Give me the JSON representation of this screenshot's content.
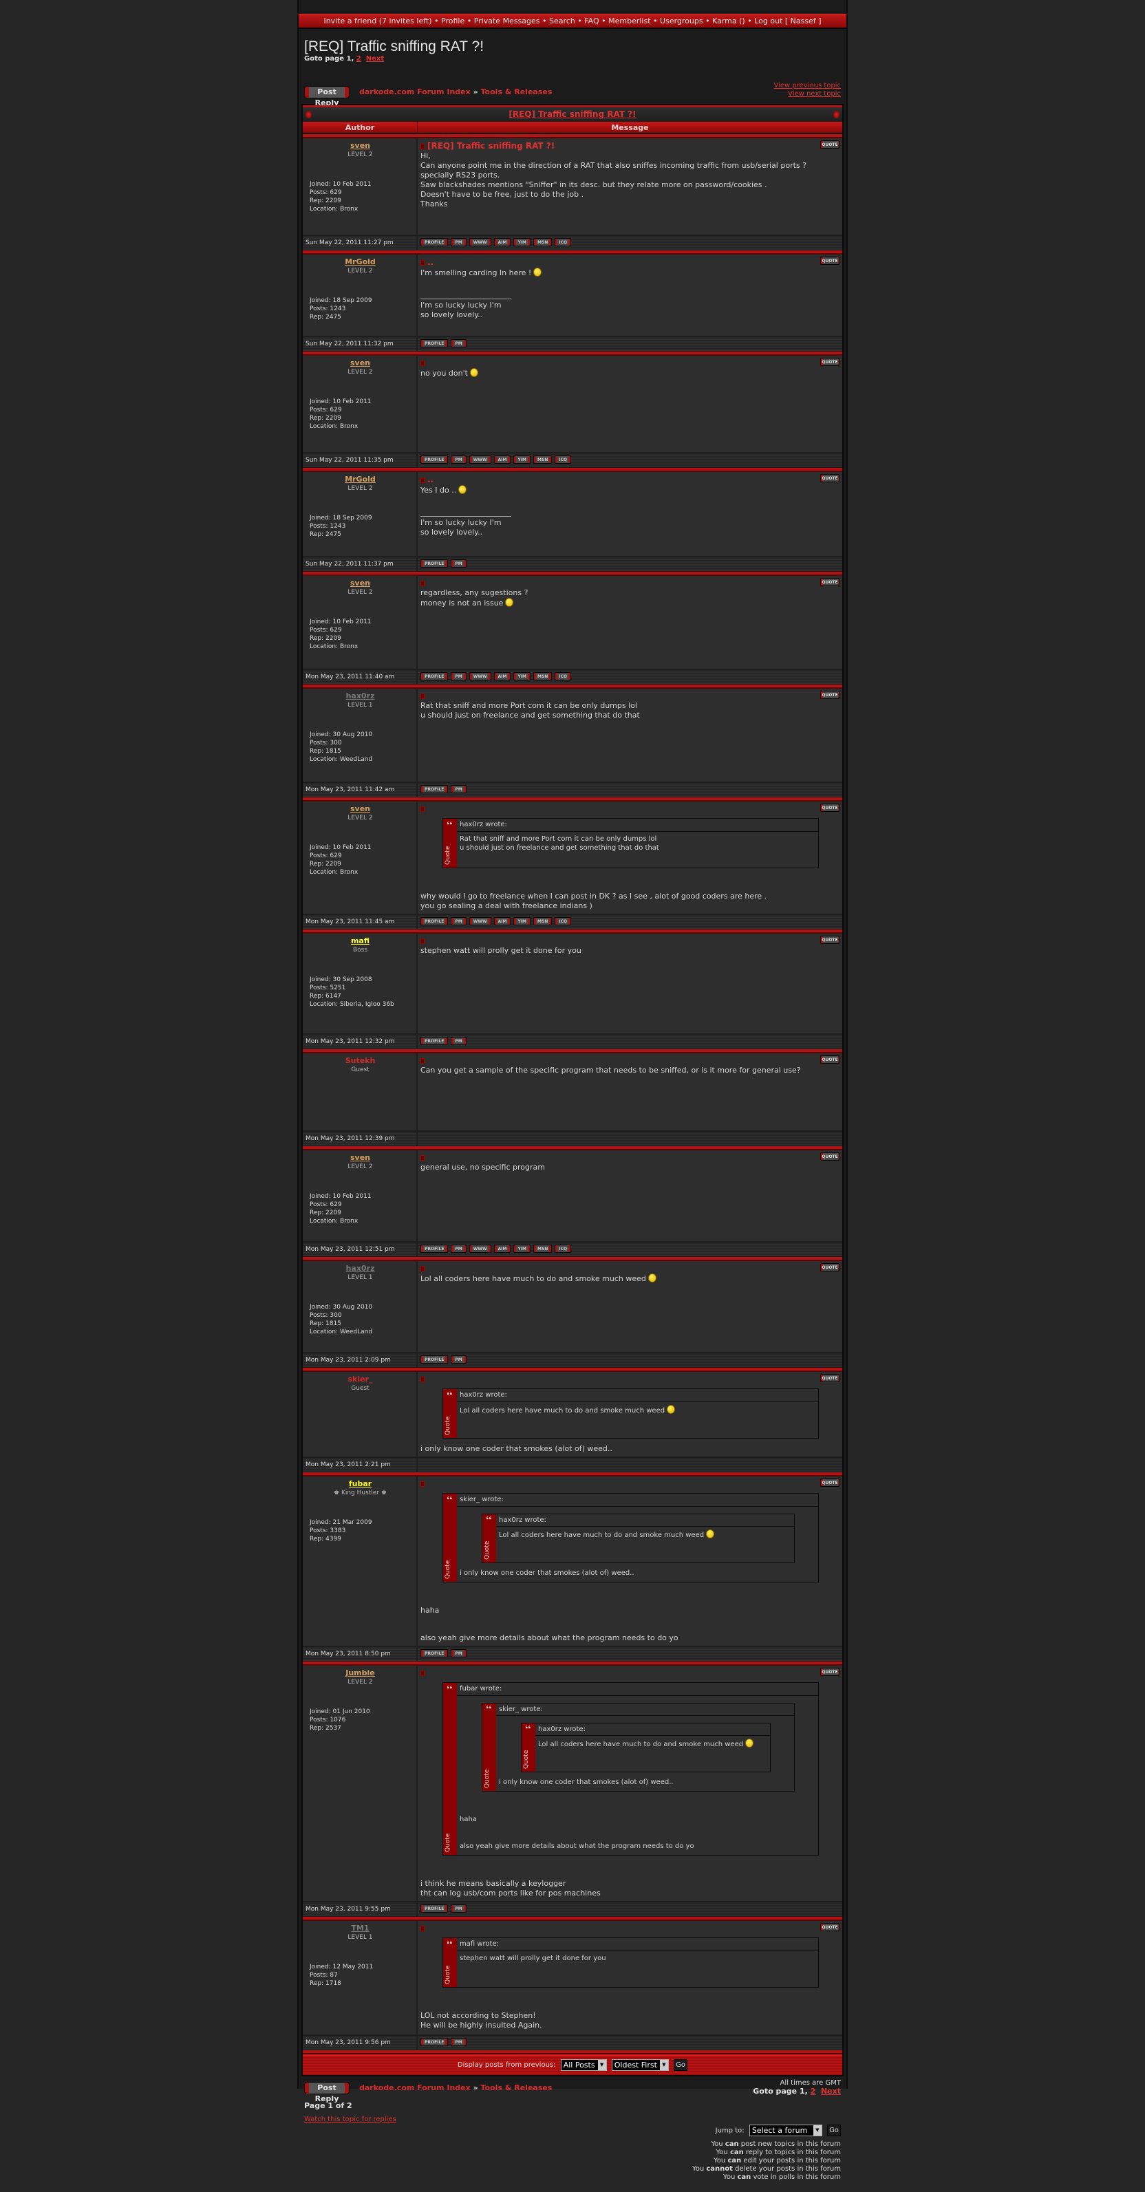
{
  "nav": {
    "items": [
      "Invite a friend (7 invites left)",
      "Profile",
      "Private Messages",
      "Search",
      "FAQ",
      "Memberlist",
      "Usergroups",
      "Karma ()",
      "Log out [ Nassef ]"
    ],
    "separator": "•"
  },
  "topic": {
    "title": "[REQ] Traffic sniffing RAT ?!"
  },
  "pagination": {
    "prefix": "Goto page",
    "current": "1,",
    "page2": "2",
    "next": "Next",
    "page_of": "Page 1 of 2"
  },
  "toolbar": {
    "post_reply": "Post Reply",
    "forum_index": "darkode.com Forum Index",
    "crumb_sep": "»",
    "forum": "Tools & Releases",
    "prev_topic": "View previous topic",
    "next_topic": "View next topic"
  },
  "table": {
    "author_header": "Author",
    "message_header": "Message",
    "quote_label": "QUOTE",
    "quote_side": "Quote"
  },
  "colors": {
    "accent": "#b31515",
    "name_tan": "#d4a062",
    "name_gray": "#7a7a7a",
    "name_yellow": "#ffff33",
    "name_red": "#d42a2a"
  },
  "posts": [
    {
      "author": "sven",
      "color": "#d4a062",
      "rank": "LEVEL 2",
      "info": [
        "Joined: 10 Feb 2011",
        "Posts: 629",
        "Rep: 2209",
        "Location: Bronx"
      ],
      "subject": "[REQ] Traffic sniffing RAT ?!",
      "date": "Sun May 22, 2011 11:27 pm",
      "buttons": [
        "PROFILE",
        "PM",
        "WWW",
        "AIM",
        "YIM",
        "MSN",
        "ICQ"
      ],
      "body": [
        {
          "type": "text",
          "lines": [
            {
              "text": "Hi,"
            },
            {
              "text": "Can anyone point me in the direction of a RAT that also sniffes incoming traffic from usb/serial ports ? specially RS23 ports."
            },
            {
              "text": "Saw blackshades mentions \"Sniffer\" in its desc. but they relate more on password/cookies ."
            },
            {
              "text": "Doesn't have to be free, just to do the job ."
            },
            {
              "text": "Thanks"
            }
          ]
        }
      ]
    },
    {
      "author": "MrGold",
      "color": "#d4a062",
      "rank": "LEVEL 2",
      "info": [
        "Joined: 18 Sep 2009",
        "Posts: 1243",
        "Rep: 2475"
      ],
      "subject": "..",
      "date": "Sun May 22, 2011 11:32 pm",
      "buttons": [
        "PROFILE",
        "PM"
      ],
      "body": [
        {
          "type": "text",
          "lines": [
            {
              "text": "I'm smelling carding In here !",
              "smiley": "rolleyes-smiley"
            }
          ]
        },
        {
          "type": "sig",
          "text": "I'm so lucky lucky I'm so lovely lovely.."
        }
      ]
    },
    {
      "author": "sven",
      "color": "#d4a062",
      "rank": "LEVEL 2",
      "info": [
        "Joined: 10 Feb 2011",
        "Posts: 629",
        "Rep: 2209",
        "Location: Bronx"
      ],
      "subject": "",
      "date": "Sun May 22, 2011 11:35 pm",
      "buttons": [
        "PROFILE",
        "PM",
        "WWW",
        "AIM",
        "YIM",
        "MSN",
        "ICQ"
      ],
      "body": [
        {
          "type": "text",
          "lines": [
            {
              "text": "no you don't",
              "smiley": "shocked-smiley"
            }
          ]
        }
      ]
    },
    {
      "author": "MrGold",
      "color": "#d4a062",
      "rank": "LEVEL 2",
      "info": [
        "Joined: 18 Sep 2009",
        "Posts: 1243",
        "Rep: 2475"
      ],
      "subject": "..",
      "date": "Sun May 22, 2011 11:37 pm",
      "buttons": [
        "PROFILE",
        "PM"
      ],
      "body": [
        {
          "type": "text",
          "lines": [
            {
              "text": "Yes I do ..",
              "smiley": "rolleyes-smiley"
            }
          ]
        },
        {
          "type": "sig",
          "text": "I'm so lucky lucky I'm so lovely lovely.."
        }
      ]
    },
    {
      "author": "sven",
      "color": "#d4a062",
      "rank": "LEVEL 2",
      "info": [
        "Joined: 10 Feb 2011",
        "Posts: 629",
        "Rep: 2209",
        "Location: Bronx"
      ],
      "subject": "",
      "date": "Mon May 23, 2011 11:40 am",
      "buttons": [
        "PROFILE",
        "PM",
        "WWW",
        "AIM",
        "YIM",
        "MSN",
        "ICQ"
      ],
      "body": [
        {
          "type": "text",
          "lines": [
            {
              "text": "regardless, any sugestions ?"
            },
            {
              "text": "money is not an issue",
              "smiley": "idea-smiley"
            }
          ]
        }
      ]
    },
    {
      "author": "hax0rz",
      "color": "#7a7a7a",
      "rank": "LEVEL 1",
      "info": [
        "Joined: 30 Aug 2010",
        "Posts: 300",
        "Rep: 1815",
        "Location: WeedLand"
      ],
      "subject": "",
      "date": "Mon May 23, 2011 11:42 am",
      "buttons": [
        "PROFILE",
        "PM"
      ],
      "body": [
        {
          "type": "text",
          "lines": [
            {
              "text": "Rat that sniff and more Port com it can be only dumps lol"
            },
            {
              "text": "u should just on freelance and get something that do that"
            }
          ]
        }
      ]
    },
    {
      "author": "sven",
      "color": "#d4a062",
      "rank": "LEVEL 2",
      "info": [
        "Joined: 10 Feb 2011",
        "Posts: 629",
        "Rep: 2209",
        "Location: Bronx"
      ],
      "subject": "",
      "date": "Mon May 23, 2011 11:45 am",
      "buttons": [
        "PROFILE",
        "PM",
        "WWW",
        "AIM",
        "YIM",
        "MSN",
        "ICQ"
      ],
      "body": [
        {
          "type": "quote",
          "header": "hax0rz wrote:",
          "body": [
            {
              "type": "text",
              "lines": [
                {
                  "text": "Rat that sniff and more Port com it can be only dumps lol"
                },
                {
                  "text": "u should just on freelance and get something that do that"
                }
              ]
            }
          ]
        },
        {
          "type": "spacer"
        },
        {
          "type": "text",
          "lines": [
            {
              "text": "why would I go to freelance when I can post in DK ? as I see , alot of good coders are here ."
            },
            {
              "text": "you go sealing a deal with freelance indians )"
            }
          ]
        }
      ]
    },
    {
      "author": "mafi",
      "color": "#ffff33",
      "rank": "Boss",
      "info": [
        "Joined: 30 Sep 2008",
        "Posts: 5251",
        "Rep: 6147",
        "Location: Siberia, Igloo 36b"
      ],
      "subject": "",
      "date": "Mon May 23, 2011 12:32 pm",
      "buttons": [
        "PROFILE",
        "PM"
      ],
      "body": [
        {
          "type": "text",
          "lines": [
            {
              "text": "stephen watt will prolly get it done for you"
            }
          ]
        }
      ]
    },
    {
      "author": "Sutekh",
      "color": "#d42a2a",
      "rank": "Guest",
      "info": [],
      "subject": "",
      "date": "Mon May 23, 2011 12:39 pm",
      "buttons": [],
      "body": [
        {
          "type": "text",
          "lines": [
            {
              "text": "Can you get a sample of the specific program that needs to be sniffed, or is it more for general use?"
            }
          ]
        }
      ]
    },
    {
      "author": "sven",
      "color": "#d4a062",
      "rank": "LEVEL 2",
      "info": [
        "Joined: 10 Feb 2011",
        "Posts: 629",
        "Rep: 2209",
        "Location: Bronx"
      ],
      "subject": "",
      "date": "Mon May 23, 2011 12:51 pm",
      "buttons": [
        "PROFILE",
        "PM",
        "WWW",
        "AIM",
        "YIM",
        "MSN",
        "ICQ"
      ],
      "body": [
        {
          "type": "text",
          "lines": [
            {
              "text": "general use, no specific program"
            }
          ]
        }
      ]
    },
    {
      "author": "hax0rz",
      "color": "#7a7a7a",
      "rank": "LEVEL 1",
      "info": [
        "Joined: 30 Aug 2010",
        "Posts: 300",
        "Rep: 1815",
        "Location: WeedLand"
      ],
      "subject": "",
      "date": "Mon May 23, 2011 2:09 pm",
      "buttons": [
        "PROFILE",
        "PM"
      ],
      "body": [
        {
          "type": "text",
          "lines": [
            {
              "text": "Lol all coders here have much to do and smoke much weed",
              "smiley": "tongue-smiley"
            }
          ]
        }
      ]
    },
    {
      "author": "skier_",
      "color": "#d42a2a",
      "rank": "Guest",
      "info": [],
      "subject": "",
      "date": "Mon May 23, 2011 2:21 pm",
      "buttons": [],
      "body": [
        {
          "type": "quote",
          "header": "hax0rz wrote:",
          "body": [
            {
              "type": "text",
              "lines": [
                {
                  "text": "Lol all coders here have much to do and smoke much weed",
                  "smiley": "tongue-smiley"
                }
              ]
            }
          ]
        },
        {
          "type": "text",
          "lines": [
            {
              "text": "i only know one coder that smokes (alot of) weed.."
            }
          ]
        }
      ]
    },
    {
      "author": "fubar",
      "color": "#ffff33",
      "rank": "♚ King Hustler ♚",
      "info": [
        "Joined: 21 Mar 2009",
        "Posts: 3383",
        "Rep: 4399"
      ],
      "subject": "",
      "date": "Mon May 23, 2011 8:50 pm",
      "buttons": [
        "PROFILE",
        "PM"
      ],
      "body": [
        {
          "type": "quote",
          "header": "skier_ wrote:",
          "body": [
            {
              "type": "quote",
              "header": "hax0rz wrote:",
              "body": [
                {
                  "type": "text",
                  "lines": [
                    {
                      "text": "Lol all coders here have much to do and smoke much weed",
                      "smiley": "tongue-smiley"
                    }
                  ]
                }
              ]
            },
            {
              "type": "text",
              "lines": [
                {
                  "text": "i only know one coder that smokes (alot of) weed.."
                }
              ]
            }
          ]
        },
        {
          "type": "spacer"
        },
        {
          "type": "text",
          "lines": [
            {
              "text": "haha"
            }
          ]
        },
        {
          "type": "spacer"
        },
        {
          "type": "text",
          "lines": [
            {
              "text": "also yeah give more details about what the program needs to do yo"
            }
          ]
        }
      ]
    },
    {
      "author": "Jumbie",
      "color": "#d4a062",
      "rank": "LEVEL 2",
      "info": [
        "Joined: 01 Jun 2010",
        "Posts: 1076",
        "Rep: 2537"
      ],
      "subject": "",
      "date": "Mon May 23, 2011 9:55 pm",
      "buttons": [
        "PROFILE",
        "PM"
      ],
      "body": [
        {
          "type": "quote",
          "header": "fubar wrote:",
          "body": [
            {
              "type": "quote",
              "header": "skier_ wrote:",
              "body": [
                {
                  "type": "quote",
                  "header": "hax0rz wrote:",
                  "body": [
                    {
                      "type": "text",
                      "lines": [
                        {
                          "text": "Lol all coders here have much to do and smoke much weed",
                          "smiley": "tongue-smiley"
                        }
                      ]
                    }
                  ]
                },
                {
                  "type": "text",
                  "lines": [
                    {
                      "text": "i only know one coder that smokes (alot of) weed.."
                    }
                  ]
                }
              ]
            },
            {
              "type": "spacer"
            },
            {
              "type": "text",
              "lines": [
                {
                  "text": "haha"
                }
              ]
            },
            {
              "type": "spacer"
            },
            {
              "type": "text",
              "lines": [
                {
                  "text": "also yeah give more details about what the program needs to do yo"
                }
              ]
            }
          ]
        },
        {
          "type": "spacer"
        },
        {
          "type": "text",
          "lines": [
            {
              "text": "i think he means basically a keylogger"
            },
            {
              "text": "tht can log usb/com ports like for pos machines"
            }
          ]
        }
      ]
    },
    {
      "author": "TM1",
      "color": "#7a7a7a",
      "rank": "LEVEL 1",
      "info": [
        "Joined: 12 May 2011",
        "Posts: 87",
        "Rep: 1718"
      ],
      "subject": "",
      "date": "Mon May 23, 2011 9:56 pm",
      "buttons": [
        "PROFILE",
        "PM"
      ],
      "body": [
        {
          "type": "quote",
          "header": "mafi wrote:",
          "body": [
            {
              "type": "text",
              "lines": [
                {
                  "text": "stephen watt will prolly get it done for you"
                }
              ]
            }
          ]
        },
        {
          "type": "spacer"
        },
        {
          "type": "text",
          "lines": [
            {
              "text": "LOL not according to Stephen!"
            }
          ]
        },
        {
          "type": "text",
          "lines": [
            {
              "text": " "
            }
          ]
        },
        {
          "type": "text",
          "lines": [
            {
              "text": "He will be highly insulted Again."
            }
          ]
        }
      ]
    }
  ],
  "filter": {
    "label": "Display posts from previous:",
    "days": "All Posts",
    "order": "Oldest First",
    "go": "Go"
  },
  "footer": {
    "timezone": "All times are GMT",
    "watch": "Watch this topic for replies",
    "jump_label": "Jump to:",
    "jump_value": "Select a forum",
    "jump_go": "Go",
    "permissions": [
      [
        "You ",
        "can",
        " post new topics in this forum"
      ],
      [
        "You ",
        "can",
        " reply to topics in this forum"
      ],
      [
        "You ",
        "can",
        " edit your posts in this forum"
      ],
      [
        "You ",
        "cannot",
        " delete your posts in this forum"
      ],
      [
        "You ",
        "can",
        " vote in polls in this forum"
      ]
    ]
  }
}
